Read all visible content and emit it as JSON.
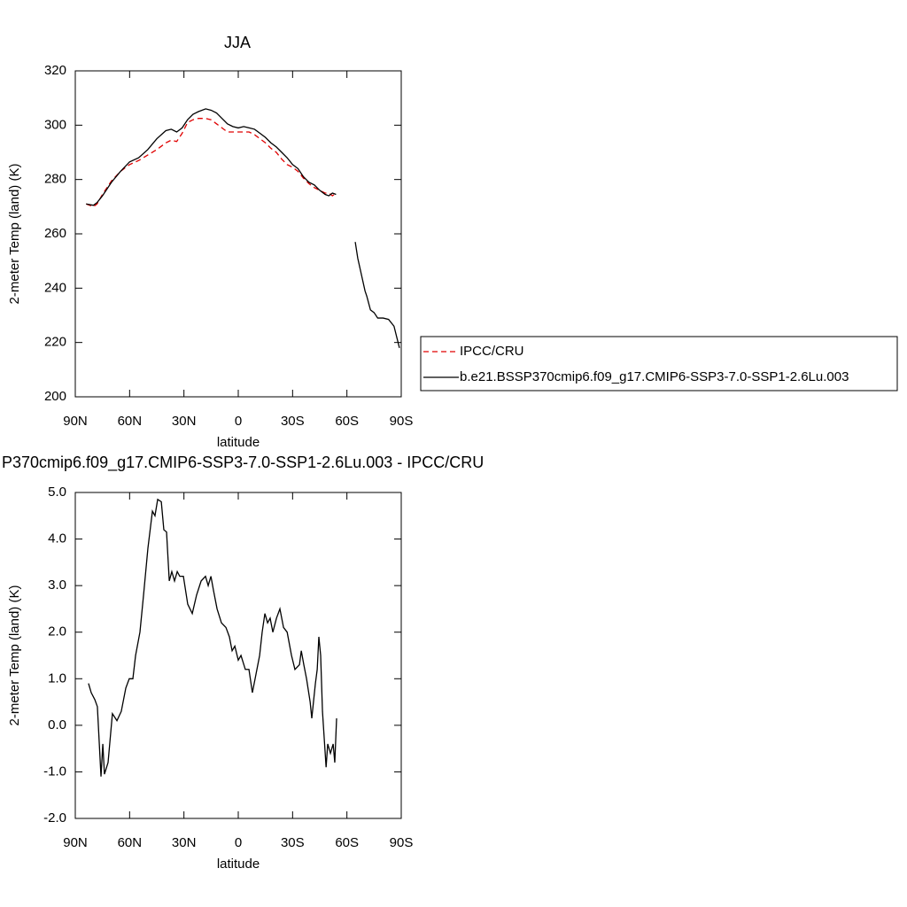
{
  "chart_data": [
    {
      "type": "line",
      "title": "JJA",
      "x_label": "latitude",
      "y_label": "2-meter Temp (land) (K)",
      "xlim": [
        90,
        -90
      ],
      "xticks": [
        {
          "value": 90,
          "label": "90N"
        },
        {
          "value": 60,
          "label": "60N"
        },
        {
          "value": 30,
          "label": "30N"
        },
        0,
        {
          "value": -30,
          "label": "30S"
        },
        {
          "value": -60,
          "label": "60S"
        },
        {
          "value": -90,
          "label": "90S"
        }
      ],
      "ylim": [
        200,
        320
      ],
      "yticks": [
        200,
        220,
        240,
        260,
        280,
        300,
        320
      ],
      "legend": "right",
      "x": [
        84,
        80,
        78,
        75,
        70,
        65,
        60,
        55,
        50,
        45,
        40,
        37,
        34,
        31,
        28,
        25,
        22,
        18,
        15,
        12,
        9,
        6,
        3,
        0,
        -3,
        -6,
        -9,
        -12,
        -15,
        -18,
        -21,
        -24,
        -27,
        -30,
        -33,
        -36,
        -39,
        -42,
        -45,
        -48,
        -50,
        -52,
        -54,
        -60,
        -64.6,
        -66,
        -68,
        -70,
        -71,
        -73,
        -75,
        -77,
        -80,
        -83,
        -86,
        -89
      ],
      "series": [
        {
          "name": "IPCC/CRU",
          "color": "#e00000",
          "dash": "dashed",
          "values": [
            271,
            270,
            271,
            274.5,
            279.5,
            283,
            285.5,
            287,
            289,
            291,
            293.5,
            294.5,
            294,
            297,
            301,
            302,
            302.5,
            302.5,
            302,
            300.5,
            299,
            297.5,
            297.5,
            297.5,
            297.5,
            297.5,
            296.5,
            295,
            293.5,
            291.5,
            290,
            287.5,
            285.5,
            284.5,
            283,
            280.5,
            278.5,
            277,
            276,
            275,
            275,
            274,
            275,
            null,
            null,
            null,
            null,
            null,
            null,
            null,
            null,
            null,
            null,
            null,
            null,
            null
          ]
        },
        {
          "name": "b.e21.BSSP370cmip6.f09_g17.CMIP6-SSP3-7.0-SSP1-2.6Lu.003",
          "color": "#000000",
          "dash": "solid",
          "values": [
            271,
            270.5,
            271.5,
            274,
            279,
            283,
            286.5,
            288,
            291,
            295,
            298,
            298.5,
            297.5,
            299,
            302,
            304,
            305,
            306,
            305.5,
            304.5,
            302.5,
            300.5,
            299.5,
            299,
            299.5,
            299,
            298.5,
            297,
            295.5,
            293.5,
            292,
            290,
            288,
            285.5,
            284,
            281,
            279,
            278,
            276,
            274.5,
            274,
            275,
            274.5,
            null,
            257,
            251,
            245,
            239,
            237,
            232,
            231,
            229,
            229,
            228.5,
            226,
            218
          ]
        }
      ]
    },
    {
      "type": "line",
      "title": "P370cmip6.f09_g17.CMIP6-SSP3-7.0-SSP1-2.6Lu.003 - IPCC/CRU",
      "x_label": "latitude",
      "y_label": "2-meter Temp (land) (K)",
      "xlim": [
        90,
        -90
      ],
      "xticks": [
        {
          "value": 90,
          "label": "90N"
        },
        {
          "value": 60,
          "label": "60N"
        },
        {
          "value": 30,
          "label": "30N"
        },
        0,
        {
          "value": -30,
          "label": "30S"
        },
        {
          "value": -60,
          "label": "60S"
        },
        {
          "value": -90,
          "label": "90S"
        }
      ],
      "ylim": [
        -2,
        5
      ],
      "yticks": [
        {
          "value": -2,
          "label": "-2.0"
        },
        {
          "value": -1,
          "label": "-1.0"
        },
        {
          "value": 0,
          "label": "0.0"
        },
        {
          "value": 1,
          "label": "1.0"
        },
        {
          "value": 2,
          "label": "2.0"
        },
        {
          "value": 3,
          "label": "3.0"
        },
        {
          "value": 4,
          "label": "4.0"
        },
        {
          "value": 5,
          "label": "5.0"
        }
      ],
      "x": [
        82.7,
        81.2,
        79.2,
        77.8,
        75.8,
        74.8,
        73.9,
        71.9,
        69.5,
        67,
        64.6,
        62.1,
        60.2,
        58.2,
        56.7,
        54.3,
        52.3,
        49.9,
        47.4,
        46,
        44.5,
        42.5,
        41.1,
        39.6,
        38.1,
        36.7,
        35.2,
        33.7,
        32.3,
        30.3,
        27.9,
        25.4,
        23,
        20.5,
        18.1,
        16.6,
        15.1,
        13.7,
        11.7,
        9.3,
        6.8,
        4.9,
        3.4,
        1.9,
        0,
        -1.5,
        -3.9,
        -5.9,
        -7.8,
        -9.8,
        -11.8,
        -13.2,
        -14.7,
        -16.2,
        -17.6,
        -19.1,
        -21.1,
        -23,
        -25,
        -27,
        -29.4,
        -31.3,
        -33.8,
        -34.8,
        -36.2,
        -37.7,
        -39.7,
        -40.6,
        -42.6,
        -43.6,
        -44.5,
        -45.5,
        -46.5,
        -47.5,
        -48.5,
        -49.4,
        -50.9,
        -52.4,
        -53.3,
        -54.3
      ],
      "series": [
        {
          "name": null,
          "color": "#000000",
          "dash": "solid",
          "values": [
            0.9,
            0.7,
            0.55,
            0.4,
            -1.1,
            -0.4,
            -1.05,
            -0.8,
            0.25,
            0.1,
            0.3,
            0.8,
            1,
            1,
            1.5,
            2,
            2.8,
            3.8,
            4.6,
            4.5,
            4.85,
            4.8,
            4.2,
            4.15,
            3.1,
            3.3,
            3.1,
            3.3,
            3.2,
            3.2,
            2.6,
            2.4,
            2.8,
            3.1,
            3.2,
            3,
            3.2,
            2.9,
            2.5,
            2.2,
            2.1,
            1.9,
            1.6,
            1.7,
            1.4,
            1.5,
            1.2,
            1.2,
            0.7,
            1.1,
            1.5,
            2,
            2.4,
            2.2,
            2.3,
            2,
            2.3,
            2.5,
            2.1,
            2,
            1.5,
            1.2,
            1.3,
            1.6,
            1.3,
            1,
            0.5,
            0.15,
            0.9,
            1.2,
            1.9,
            1.5,
            0.3,
            -0.3,
            -0.9,
            -0.4,
            -0.6,
            -0.4,
            -0.8,
            0.15
          ]
        }
      ]
    }
  ]
}
